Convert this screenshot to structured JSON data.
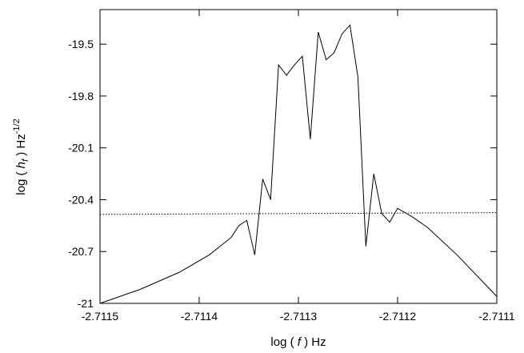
{
  "chart_data": {
    "type": "line",
    "title": "",
    "xlabel": {
      "pre": "log ( ",
      "var": "f",
      "post": " )  Hz"
    },
    "ylabel": {
      "pre": "log ( ",
      "var": "h",
      "sub": "f",
      "post": " )  Hz",
      "sup": "-1/2"
    },
    "xlim": [
      -2.7115,
      -2.7111
    ],
    "ylim": [
      -21,
      -19.3
    ],
    "x_ticks": [
      -2.7115,
      -2.7114,
      -2.7113,
      -2.7112,
      -2.7111
    ],
    "x_tick_labels": [
      "-2.7115",
      "-2.7114",
      "-2.7113",
      "-2.7112",
      "-2.7111"
    ],
    "y_ticks": [
      -21,
      -20.7,
      -20.4,
      -20.1,
      -19.8,
      -19.5
    ],
    "y_tick_labels": [
      "-21",
      "-20.7",
      "-20.4",
      "-20.1",
      "-19.8",
      "-19.5"
    ],
    "grid": false,
    "series": [
      {
        "style": "solid",
        "x": [
          -2.7115,
          -2.71146,
          -2.71142,
          -2.71139,
          -2.711368,
          -2.71136,
          -2.711352,
          -2.711344,
          -2.711336,
          -2.711328,
          -2.71132,
          -2.711312,
          -2.711304,
          -2.711296,
          -2.711288,
          -2.71128,
          -2.711272,
          -2.711264,
          -2.711256,
          -2.711248,
          -2.71124,
          -2.711232,
          -2.711224,
          -2.711216,
          -2.711208,
          -2.7112,
          -2.711185,
          -2.71117,
          -2.71114,
          -2.7111
        ],
        "y": [
          -21.0,
          -20.92,
          -20.82,
          -20.72,
          -20.62,
          -20.55,
          -20.52,
          -20.72,
          -20.28,
          -20.4,
          -19.62,
          -19.68,
          -19.62,
          -19.57,
          -20.05,
          -19.43,
          -19.59,
          -19.55,
          -19.44,
          -19.39,
          -19.69,
          -20.67,
          -20.25,
          -20.48,
          -20.53,
          -20.45,
          -20.5,
          -20.56,
          -20.72,
          -20.96
        ]
      },
      {
        "style": "dotted",
        "x": [
          -2.7115,
          -2.7111
        ],
        "y": [
          -20.485,
          -20.475
        ]
      }
    ]
  }
}
